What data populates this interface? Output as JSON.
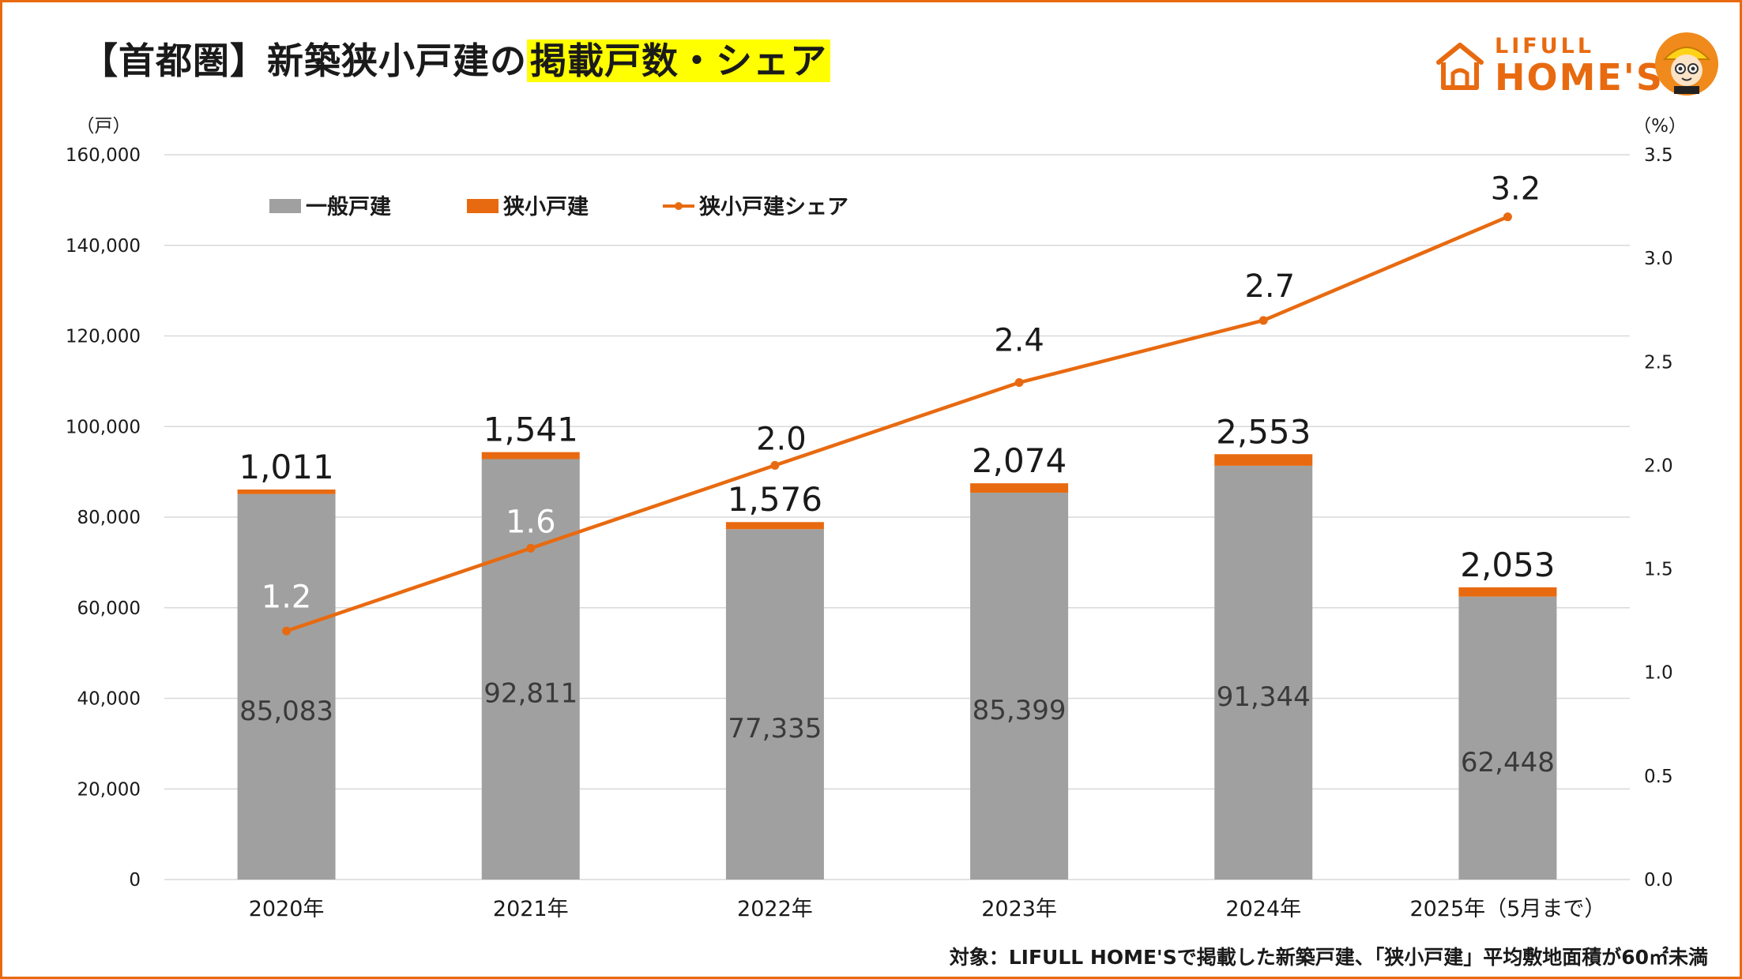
{
  "title": {
    "prefix": "【首都圏】新築狭小戸建の",
    "highlight": "掲載戸数・シェア"
  },
  "logo": {
    "line1": "LIFULL",
    "line2": "HOME'S",
    "brand_color": "#e86a10",
    "icon": "house-icon",
    "mascot": "mascot-icon"
  },
  "source_note": "対象：LIFULL HOME'Sで掲載した新築戸建、「狭小戸建」平均敷地面積が60㎡未満",
  "chart_data": {
    "type": "bar",
    "stacked": true,
    "categories": [
      "2020年",
      "2021年",
      "2022年",
      "2023年",
      "2024年",
      "2025年（5月まで）"
    ],
    "series": [
      {
        "name": "一般戸建",
        "type": "bar",
        "axis": "left",
        "color": "#a0a0a0",
        "values": [
          85083,
          92811,
          77335,
          85399,
          91344,
          62448
        ],
        "labels": [
          "85,083",
          "92,811",
          "77,335",
          "85,399",
          "91,344",
          "62,448"
        ]
      },
      {
        "name": "狭小戸建",
        "type": "bar",
        "axis": "left",
        "color": "#e86a10",
        "values": [
          1011,
          1541,
          1576,
          2074,
          2553,
          2053
        ],
        "labels": [
          "1,011",
          "1,541",
          "1,576",
          "2,074",
          "2,553",
          "2,053"
        ]
      },
      {
        "name": "狭小戸建シェア",
        "type": "line",
        "axis": "right",
        "color": "#e86a10",
        "values": [
          1.2,
          1.6,
          2.0,
          2.4,
          2.7,
          3.2
        ],
        "labels": [
          "1.2",
          "1.6",
          "2.0",
          "2.4",
          "2.7",
          "3.2"
        ]
      }
    ],
    "y_left": {
      "unit": "（戸）",
      "min": 0,
      "max": 160000,
      "ticks": [
        0,
        20000,
        40000,
        60000,
        80000,
        100000,
        120000,
        140000,
        160000
      ],
      "tick_labels": [
        "0",
        "20,000",
        "40,000",
        "60,000",
        "80,000",
        "100,000",
        "120,000",
        "140,000",
        "160,000"
      ]
    },
    "y_right": {
      "unit": "（%）",
      "min": 0,
      "max": 3.5,
      "ticks": [
        0,
        0.5,
        1.0,
        1.5,
        2.0,
        2.5,
        3.0,
        3.5
      ],
      "tick_labels": [
        "0.0",
        "0.5",
        "1.0",
        "1.5",
        "2.0",
        "2.5",
        "3.0",
        "3.5"
      ]
    },
    "grid": true,
    "legend": "top-left"
  }
}
